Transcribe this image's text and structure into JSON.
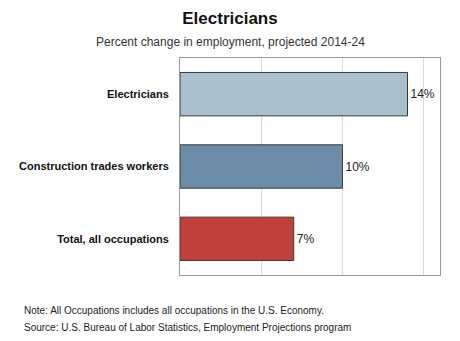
{
  "chart_data": {
    "type": "bar",
    "title": "Electricians",
    "subtitle": "Percent change in employment, projected 2014-24",
    "orientation": "horizontal",
    "categories": [
      "Electricians",
      "Construction trades workers",
      "Total, all occupations"
    ],
    "values": [
      14,
      10,
      7
    ],
    "value_labels": [
      "14%",
      "10%",
      "7%"
    ],
    "data_labels": true,
    "colors": [
      "#a9bfcc",
      "#6b8ba6",
      "#c0413c"
    ],
    "xlim": [
      0,
      16
    ],
    "xticks": [
      0,
      5,
      10,
      15
    ],
    "grid": true,
    "tick_labels": "y",
    "annotations": [
      "Note: All Occupations includes all occupations in the U.S. Economy.",
      "Source: U.S. Bureau of Labor Statistics, Employment Projections program"
    ]
  }
}
